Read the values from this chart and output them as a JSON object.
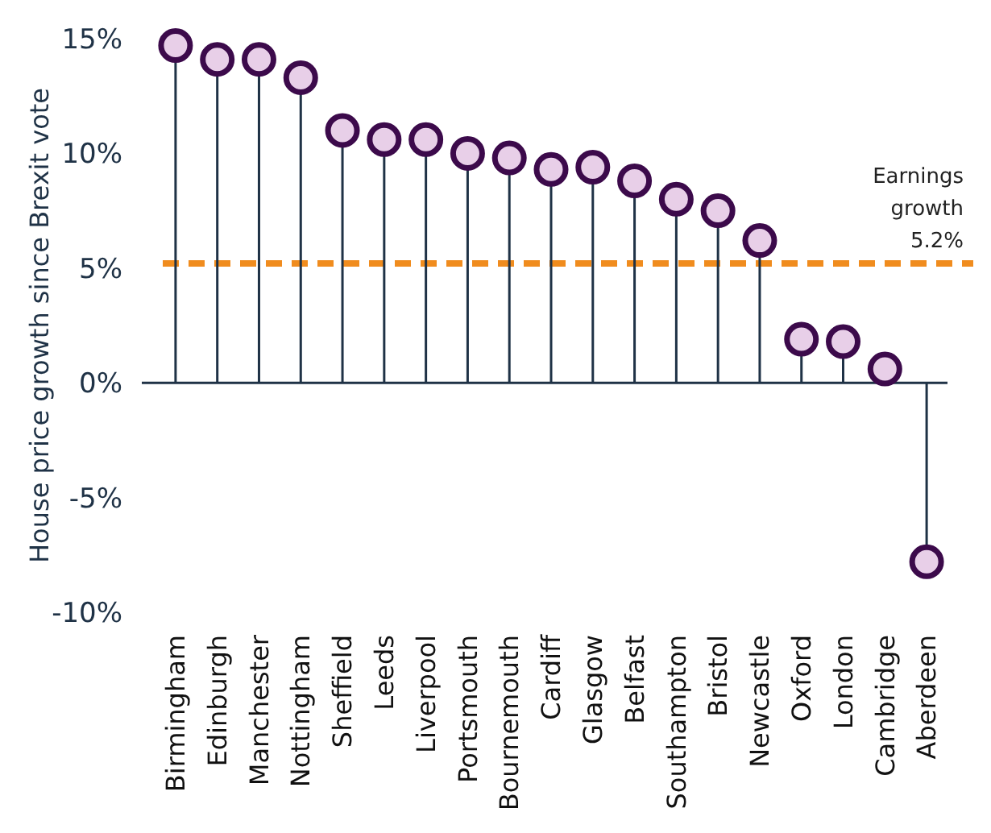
{
  "chart_data": {
    "type": "lollipop",
    "ylabel": "House price growth since Brexit vote",
    "categories": [
      "Birmingham",
      "Edinburgh",
      "Manchester",
      "Nottingham",
      "Sheffield",
      "Leeds",
      "Liverpool",
      "Portsmouth",
      "Bournemouth",
      "Cardiff",
      "Glasgow",
      "Belfast",
      "Southampton",
      "Bristol",
      "Newcastle",
      "Oxford",
      "London",
      "Cambridge",
      "Aberdeen"
    ],
    "series": [
      {
        "color": "#e8cfe8",
        "values": [
          14.7,
          14.1,
          14.1,
          13.3,
          11.0,
          10.6,
          10.6,
          10.0,
          9.8,
          9.3,
          9.4,
          8.8,
          8.0,
          7.5,
          6.2,
          1.9,
          1.8,
          0.6,
          -7.8
        ]
      }
    ],
    "ylim": [
      -10,
      15
    ],
    "yticks": [
      {
        "value": -10,
        "label": "-10%"
      },
      {
        "value": -5,
        "label": "-5%"
      },
      {
        "value": 0,
        "label": "0%"
      },
      {
        "value": 5,
        "label": "5%"
      },
      {
        "value": 10,
        "label": "10%"
      },
      {
        "value": 15,
        "label": "15%"
      }
    ],
    "ref_lines": [
      {
        "axis": "y",
        "value": 5.2,
        "label": "Earnings growth 5.2%",
        "color": "#f08c1e",
        "line_style": "dashed"
      }
    ],
    "marker": "circle"
  }
}
